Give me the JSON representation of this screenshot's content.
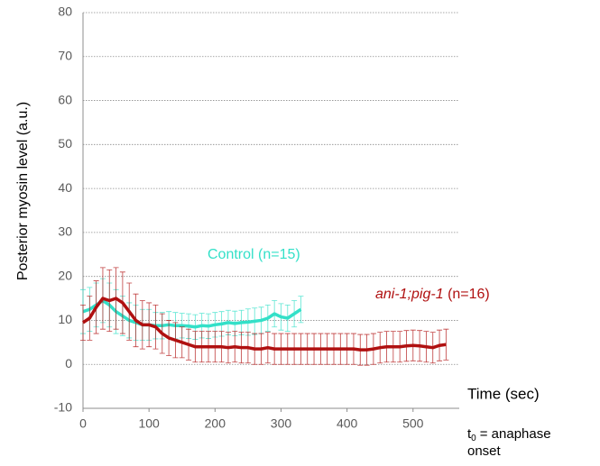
{
  "chart_data": {
    "type": "line",
    "ylabel": "Posterior myosin level (a.u.)",
    "xlabel": "Time (sec)",
    "x_note": [
      "t",
      "0",
      "= anaphase",
      "onset"
    ],
    "xlim": [
      0,
      570
    ],
    "xticks": [
      0,
      100,
      200,
      300,
      400,
      500
    ],
    "ylim": [
      -10,
      80
    ],
    "yticks": [
      -10,
      0,
      10,
      20,
      30,
      40,
      50,
      60,
      70,
      80
    ],
    "grid": true,
    "series": [
      {
        "name": "Control",
        "label_suffix": "(n=15)",
        "color": "#33e0c8",
        "x": [
          0,
          10,
          20,
          30,
          40,
          50,
          60,
          70,
          80,
          90,
          100,
          110,
          120,
          130,
          140,
          150,
          160,
          170,
          180,
          190,
          200,
          210,
          220,
          230,
          240,
          250,
          260,
          270,
          280,
          290,
          300,
          310,
          320,
          330
        ],
        "values": [
          12,
          12.5,
          13.5,
          14.5,
          13.5,
          12,
          11,
          10,
          9.5,
          9,
          9,
          8.8,
          8.8,
          9,
          8.8,
          8.8,
          8.7,
          8.5,
          8.8,
          8.7,
          9,
          9.2,
          9.5,
          9.3,
          9.5,
          9.6,
          9.8,
          10,
          10.5,
          11.5,
          10.8,
          10.5,
          11.5,
          12.5
        ],
        "errors": [
          5,
          5,
          5,
          5,
          5,
          5,
          4.5,
          4,
          4,
          3.5,
          3.5,
          3,
          3,
          3,
          3,
          2.8,
          2.8,
          2.8,
          2.8,
          2.8,
          2.8,
          2.8,
          2.8,
          2.8,
          2.8,
          3,
          3,
          3,
          3,
          3,
          3,
          3,
          3,
          3
        ]
      },
      {
        "name": "ani-1;pig-1",
        "label_suffix": "(n=16)",
        "color": "#b01010",
        "x": [
          0,
          10,
          20,
          30,
          40,
          50,
          60,
          70,
          80,
          90,
          100,
          110,
          120,
          130,
          140,
          150,
          160,
          170,
          180,
          190,
          200,
          210,
          220,
          230,
          240,
          250,
          260,
          270,
          280,
          290,
          300,
          310,
          320,
          330,
          340,
          350,
          360,
          370,
          380,
          390,
          400,
          410,
          420,
          430,
          440,
          450,
          460,
          470,
          480,
          490,
          500,
          510,
          520,
          530,
          540,
          550
        ],
        "values": [
          9.5,
          10.5,
          13,
          15,
          14.5,
          15,
          14,
          12,
          10,
          9,
          9,
          8.5,
          7,
          6,
          5.5,
          5,
          4.5,
          4,
          4,
          4,
          4,
          4,
          3.8,
          4,
          3.8,
          3.8,
          3.5,
          3.5,
          3.8,
          3.5,
          3.5,
          3.5,
          3.5,
          3.5,
          3.5,
          3.5,
          3.5,
          3.5,
          3.5,
          3.5,
          3.5,
          3.5,
          3.3,
          3.3,
          3.5,
          3.8,
          4,
          4,
          4,
          4.2,
          4.3,
          4.2,
          4,
          3.8,
          4.3,
          4.5
        ],
        "errors": [
          4,
          5,
          6,
          7,
          7,
          7,
          7,
          6.5,
          6,
          5.5,
          5,
          5,
          4.5,
          4,
          4,
          3.5,
          3.5,
          3.5,
          3.5,
          3.5,
          3.5,
          3.5,
          3.5,
          3.5,
          3.5,
          3.5,
          3.5,
          3.5,
          3.5,
          3.5,
          3.5,
          3.5,
          3.5,
          3.5,
          3.5,
          3.5,
          3.5,
          3.5,
          3.5,
          3.5,
          3.5,
          3.5,
          3.5,
          3.5,
          3.5,
          3.5,
          3.5,
          3.5,
          3.5,
          3.5,
          3.5,
          3.5,
          3.5,
          3.5,
          3.5,
          3.5
        ]
      }
    ]
  }
}
